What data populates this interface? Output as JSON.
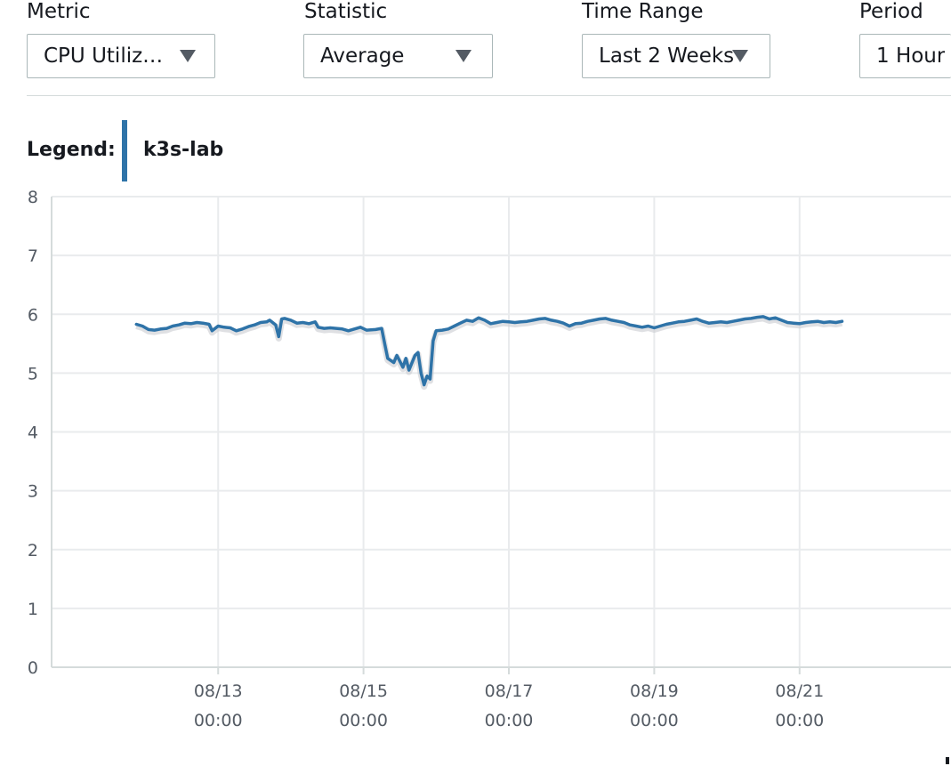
{
  "filters": {
    "metric": {
      "label": "Metric",
      "value": "CPU Utiliz…"
    },
    "statistic": {
      "label": "Statistic",
      "value": "Average"
    },
    "time_range": {
      "label": "Time Range",
      "value": "Last 2 Weeks"
    },
    "period": {
      "label": "Period",
      "value": "1 Hour"
    }
  },
  "legend": {
    "title": "Legend:",
    "item": "k3s-lab",
    "color": "#2e73a8"
  },
  "colors": {
    "series": "#2e73a8",
    "grid": "#e9ebed",
    "axis": "#d5dbdb",
    "text": "#16191f",
    "muted": "#545b64"
  },
  "chart_data": {
    "type": "line",
    "title": "",
    "xlabel": "",
    "ylabel": "",
    "ylim": [
      0,
      8
    ],
    "yticks": [
      "0",
      "1",
      "2",
      "3",
      "4",
      "5",
      "6",
      "7",
      "8"
    ],
    "xlim_hours": [
      -55,
      242
    ],
    "xticks": [
      {
        "hours": 0,
        "date": "08/13",
        "time": "00:00"
      },
      {
        "hours": 48,
        "date": "08/15",
        "time": "00:00"
      },
      {
        "hours": 96,
        "date": "08/17",
        "time": "00:00"
      },
      {
        "hours": 144,
        "date": "08/19",
        "time": "00:00"
      },
      {
        "hours": 192,
        "date": "08/21",
        "time": "00:00"
      }
    ],
    "grid": true,
    "series": [
      {
        "name": "k3s-lab",
        "points": [
          [
            -27,
            5.83
          ],
          [
            -25,
            5.8
          ],
          [
            -23,
            5.74
          ],
          [
            -21,
            5.73
          ],
          [
            -19,
            5.75
          ],
          [
            -17,
            5.76
          ],
          [
            -15,
            5.8
          ],
          [
            -13,
            5.82
          ],
          [
            -11,
            5.85
          ],
          [
            -9,
            5.84
          ],
          [
            -7,
            5.86
          ],
          [
            -5,
            5.85
          ],
          [
            -3,
            5.83
          ],
          [
            -2,
            5.72
          ],
          [
            0,
            5.8
          ],
          [
            2,
            5.78
          ],
          [
            4,
            5.77
          ],
          [
            6,
            5.72
          ],
          [
            8,
            5.75
          ],
          [
            10,
            5.79
          ],
          [
            12,
            5.82
          ],
          [
            14,
            5.86
          ],
          [
            16,
            5.87
          ],
          [
            17,
            5.9
          ],
          [
            19,
            5.82
          ],
          [
            20,
            5.62
          ],
          [
            21,
            5.92
          ],
          [
            22,
            5.93
          ],
          [
            24,
            5.9
          ],
          [
            26,
            5.85
          ],
          [
            28,
            5.86
          ],
          [
            30,
            5.84
          ],
          [
            32,
            5.87
          ],
          [
            33,
            5.78
          ],
          [
            35,
            5.76
          ],
          [
            37,
            5.77
          ],
          [
            39,
            5.76
          ],
          [
            41,
            5.75
          ],
          [
            43,
            5.72
          ],
          [
            45,
            5.75
          ],
          [
            47,
            5.78
          ],
          [
            49,
            5.73
          ],
          [
            52,
            5.74
          ],
          [
            54,
            5.76
          ],
          [
            55,
            5.5
          ],
          [
            56,
            5.25
          ],
          [
            58,
            5.18
          ],
          [
            59,
            5.3
          ],
          [
            61,
            5.1
          ],
          [
            62,
            5.25
          ],
          [
            63,
            5.05
          ],
          [
            65,
            5.3
          ],
          [
            66,
            5.35
          ],
          [
            67,
            5.0
          ],
          [
            68,
            4.8
          ],
          [
            69,
            4.95
          ],
          [
            70,
            4.9
          ],
          [
            71,
            5.55
          ],
          [
            72,
            5.72
          ],
          [
            74,
            5.73
          ],
          [
            76,
            5.75
          ],
          [
            78,
            5.8
          ],
          [
            80,
            5.85
          ],
          [
            82,
            5.9
          ],
          [
            84,
            5.88
          ],
          [
            86,
            5.94
          ],
          [
            88,
            5.9
          ],
          [
            90,
            5.84
          ],
          [
            92,
            5.86
          ],
          [
            94,
            5.88
          ],
          [
            96,
            5.87
          ],
          [
            98,
            5.86
          ],
          [
            100,
            5.87
          ],
          [
            102,
            5.88
          ],
          [
            104,
            5.9
          ],
          [
            106,
            5.92
          ],
          [
            108,
            5.93
          ],
          [
            110,
            5.9
          ],
          [
            112,
            5.88
          ],
          [
            114,
            5.85
          ],
          [
            116,
            5.8
          ],
          [
            118,
            5.84
          ],
          [
            120,
            5.85
          ],
          [
            122,
            5.88
          ],
          [
            124,
            5.9
          ],
          [
            126,
            5.92
          ],
          [
            128,
            5.93
          ],
          [
            130,
            5.9
          ],
          [
            132,
            5.88
          ],
          [
            134,
            5.86
          ],
          [
            136,
            5.82
          ],
          [
            138,
            5.8
          ],
          [
            140,
            5.78
          ],
          [
            142,
            5.8
          ],
          [
            144,
            5.77
          ],
          [
            146,
            5.8
          ],
          [
            148,
            5.83
          ],
          [
            150,
            5.85
          ],
          [
            152,
            5.87
          ],
          [
            154,
            5.88
          ],
          [
            156,
            5.9
          ],
          [
            158,
            5.92
          ],
          [
            160,
            5.88
          ],
          [
            162,
            5.85
          ],
          [
            164,
            5.86
          ],
          [
            166,
            5.87
          ],
          [
            168,
            5.86
          ],
          [
            170,
            5.88
          ],
          [
            172,
            5.9
          ],
          [
            174,
            5.92
          ],
          [
            176,
            5.93
          ],
          [
            178,
            5.95
          ],
          [
            180,
            5.96
          ],
          [
            182,
            5.92
          ],
          [
            184,
            5.94
          ],
          [
            186,
            5.9
          ],
          [
            188,
            5.86
          ],
          [
            190,
            5.85
          ],
          [
            192,
            5.84
          ],
          [
            194,
            5.86
          ],
          [
            196,
            5.87
          ],
          [
            198,
            5.88
          ],
          [
            200,
            5.86
          ],
          [
            202,
            5.87
          ],
          [
            204,
            5.86
          ],
          [
            206,
            5.88
          ]
        ]
      }
    ]
  }
}
